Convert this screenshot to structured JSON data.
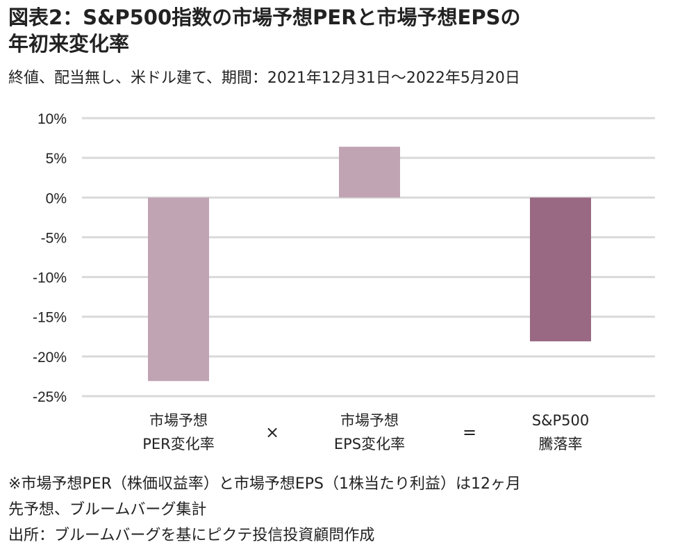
{
  "title_line1": "図表2：S&P500指数の市場予想PERと市場予想EPSの",
  "title_line2": "年初来変化率",
  "subtitle": "終値、配当無し、米ドル建て、期間：2021年12月31日～2022年5月20日",
  "operators": [
    "×",
    "="
  ],
  "notes": [
    "※市場予想PER（株価収益率）と市場予想EPS（1株当たり利益）は12ヶ月",
    "先予想、ブルームバーグ集計",
    "出所：ブルームバーグを基にピクテ投信投資顧問作成"
  ],
  "chart_data": {
    "type": "bar",
    "categories": [
      [
        "市場予想",
        "PER変化率"
      ],
      [
        "市場予想",
        "EPS変化率"
      ],
      [
        "S&P500",
        "騰落率"
      ]
    ],
    "values": [
      -23.1,
      6.4,
      -18.1
    ],
    "unit": "%",
    "ylim": [
      -25,
      10
    ],
    "yticks": [
      10,
      5,
      0,
      -5,
      -10,
      -15,
      -20,
      -25
    ],
    "ytick_labels": [
      "10%",
      "5%",
      "0%",
      "-5%",
      "-10%",
      "-15%",
      "-20%",
      "-25%"
    ],
    "grid": true,
    "colors": [
      "#c1a4b3",
      "#c1a4b3",
      "#996883"
    ],
    "grid_color": "#d9d9d9"
  }
}
